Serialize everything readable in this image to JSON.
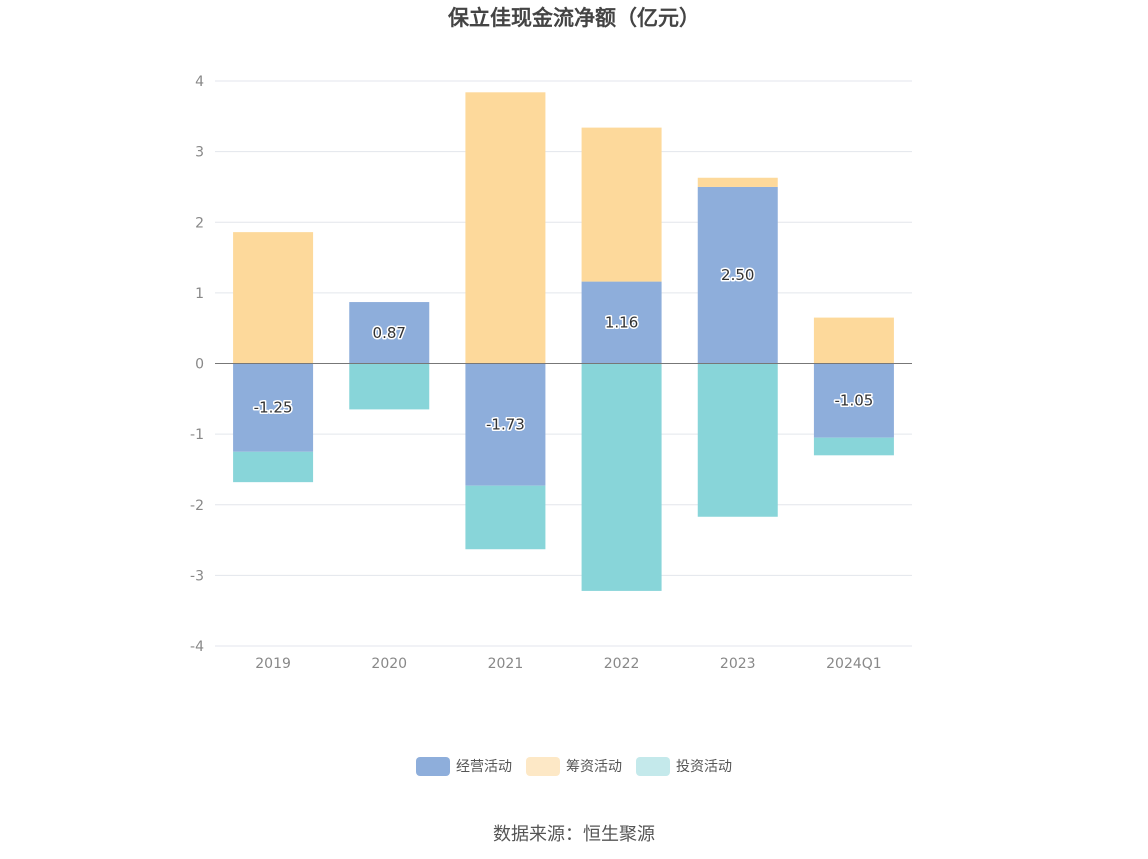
{
  "chart_data": {
    "type": "bar",
    "stacked": true,
    "title": "保立佳现金流净额（亿元）",
    "categories": [
      "2019",
      "2020",
      "2021",
      "2022",
      "2023",
      "2024Q1"
    ],
    "series": [
      {
        "name": "经营活动",
        "color": "#8eaedb",
        "values": [
          -1.25,
          0.87,
          -1.73,
          1.16,
          2.5,
          -1.05
        ],
        "show_labels": true
      },
      {
        "name": "筹资活动",
        "color": "#fdd99b",
        "values": [
          1.86,
          0,
          3.84,
          2.18,
          0.13,
          0.65
        ]
      },
      {
        "name": "投资活动",
        "color": "#88d5d9",
        "values": [
          -0.43,
          -0.65,
          -0.9,
          -3.22,
          -2.17,
          -0.25
        ]
      }
    ],
    "data_labels": [
      "-1.25",
      "0.87",
      "-1.73",
      "1.16",
      "2.50",
      "-1.05"
    ],
    "y_ticks": [
      "4",
      "3",
      "2",
      "1",
      "0",
      "-1",
      "-2",
      "-3",
      "-4"
    ],
    "ylim": [
      -4,
      4
    ],
    "grid": true,
    "legend_position": "bottom",
    "legend_colors": [
      "#8eaedb",
      "#fde8c6",
      "#c4e9eb"
    ]
  },
  "source_text": "数据来源：恒生聚源"
}
